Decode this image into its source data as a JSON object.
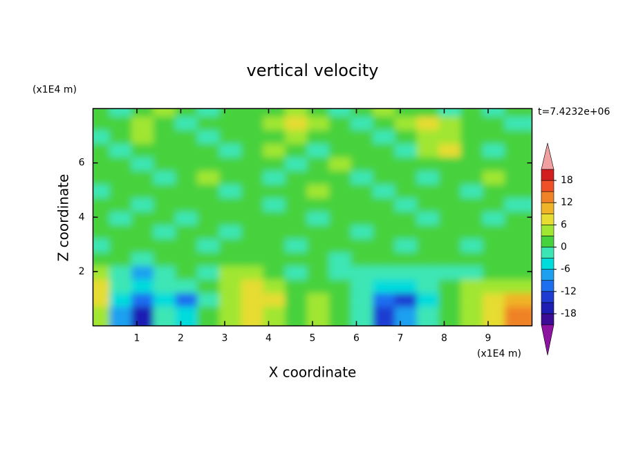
{
  "chart_data": {
    "type": "contour",
    "title": "vertical velocity",
    "xlabel": "X coordinate",
    "ylabel": "Z coordinate",
    "x_unit_label": "(x1E4 m)",
    "y_unit_label": "(x1E4 m)",
    "annotation": "t=7.4232e+06",
    "xlim": [
      0,
      10
    ],
    "ylim": [
      0,
      8
    ],
    "xticks": [
      1,
      2,
      3,
      4,
      5,
      6,
      7,
      8,
      9
    ],
    "yticks": [
      2,
      4,
      6
    ],
    "x": [
      0.25,
      0.75,
      1.25,
      1.75,
      2.25,
      2.75,
      3.25,
      3.75,
      4.25,
      4.75,
      5.25,
      5.75,
      6.25,
      6.75,
      7.25,
      7.75,
      8.25,
      8.75,
      9.25,
      9.75
    ],
    "y": [
      7.75,
      7.25,
      6.75,
      6.25,
      5.75,
      5.25,
      4.75,
      4.25,
      3.75,
      3.25,
      2.75,
      2.25,
      1.75,
      1.25,
      0.75,
      0.25
    ],
    "z": [
      [
        1.5,
        -1.5,
        1.5,
        4.5,
        1.5,
        -1.5,
        1.5,
        1.5,
        1.5,
        4.5,
        1.5,
        -1.5,
        1.5,
        4.5,
        1.5,
        1.5,
        -1.5,
        1.5,
        -1.5,
        1.5
      ],
      [
        1.5,
        1.5,
        4.5,
        1.5,
        -1.5,
        1.5,
        1.5,
        1.5,
        4.5,
        7.5,
        4.5,
        1.5,
        -1.5,
        1.5,
        4.5,
        7.5,
        4.5,
        1.5,
        1.5,
        -1.5
      ],
      [
        -1.5,
        1.5,
        4.5,
        1.5,
        1.5,
        -1.5,
        1.5,
        1.5,
        1.5,
        4.5,
        1.5,
        1.5,
        1.5,
        -1.5,
        1.5,
        4.5,
        4.5,
        1.5,
        1.5,
        1.5
      ],
      [
        1.5,
        -1.5,
        1.5,
        1.5,
        1.5,
        1.5,
        -1.5,
        1.5,
        4.5,
        1.5,
        -1.5,
        1.5,
        1.5,
        1.5,
        -1.5,
        4.5,
        7.5,
        1.5,
        -1.5,
        1.5
      ],
      [
        1.5,
        1.5,
        -1.5,
        1.5,
        1.5,
        1.5,
        1.5,
        1.5,
        1.5,
        -1.5,
        1.5,
        4.5,
        1.5,
        1.5,
        1.5,
        1.5,
        1.5,
        1.5,
        1.5,
        1.5
      ],
      [
        1.5,
        1.5,
        1.5,
        -1.5,
        1.5,
        4.5,
        1.5,
        1.5,
        -1.5,
        1.5,
        1.5,
        1.5,
        -1.5,
        1.5,
        1.5,
        -1.5,
        1.5,
        1.5,
        4.5,
        1.5
      ],
      [
        -1.5,
        1.5,
        1.5,
        1.5,
        1.5,
        1.5,
        -1.5,
        1.5,
        1.5,
        1.5,
        4.5,
        1.5,
        1.5,
        -1.5,
        1.5,
        1.5,
        1.5,
        -1.5,
        1.5,
        1.5
      ],
      [
        1.5,
        1.5,
        -1.5,
        1.5,
        1.5,
        1.5,
        1.5,
        1.5,
        -1.5,
        1.5,
        1.5,
        1.5,
        1.5,
        1.5,
        -1.5,
        1.5,
        1.5,
        1.5,
        1.5,
        -1.5
      ],
      [
        1.5,
        -1.5,
        1.5,
        1.5,
        -1.5,
        1.5,
        1.5,
        1.5,
        1.5,
        1.5,
        -1.5,
        1.5,
        1.5,
        1.5,
        1.5,
        -1.5,
        1.5,
        1.5,
        -1.5,
        1.5
      ],
      [
        1.5,
        1.5,
        1.5,
        -1.5,
        1.5,
        1.5,
        -1.5,
        1.5,
        1.5,
        1.5,
        1.5,
        1.5,
        -1.5,
        1.5,
        1.5,
        1.5,
        1.5,
        1.5,
        1.5,
        1.5
      ],
      [
        -1.5,
        1.5,
        1.5,
        1.5,
        1.5,
        -1.5,
        1.5,
        1.5,
        1.5,
        -1.5,
        1.5,
        1.5,
        1.5,
        1.5,
        -1.5,
        1.5,
        1.5,
        -1.5,
        1.5,
        1.5
      ],
      [
        1.5,
        1.5,
        -1.5,
        1.5,
        1.5,
        1.5,
        1.5,
        1.5,
        1.5,
        1.5,
        1.5,
        -1.5,
        1.5,
        1.5,
        1.5,
        1.5,
        1.5,
        1.5,
        1.5,
        1.5
      ],
      [
        4.5,
        -1.5,
        -7.5,
        -1.5,
        1.5,
        -1.5,
        4.5,
        4.5,
        1.5,
        -1.5,
        1.5,
        -1.5,
        -1.5,
        -1.5,
        -1.5,
        -1.5,
        -1.5,
        -1.5,
        1.5,
        1.5
      ],
      [
        7.5,
        -1.5,
        -4.5,
        -1.5,
        -1.5,
        1.5,
        4.5,
        7.5,
        4.5,
        1.5,
        1.5,
        1.5,
        -1.5,
        -4.5,
        -4.5,
        -1.5,
        1.5,
        4.5,
        4.5,
        4.5
      ],
      [
        7.5,
        -4.5,
        -10.5,
        -4.5,
        -10.5,
        -1.5,
        4.5,
        7.5,
        7.5,
        1.5,
        4.5,
        1.5,
        -1.5,
        -10.5,
        -13.5,
        -4.5,
        1.5,
        4.5,
        7.5,
        10.5
      ],
      [
        4.5,
        -7.5,
        -16.5,
        -1.5,
        -4.5,
        1.5,
        4.5,
        7.5,
        4.5,
        1.5,
        4.5,
        1.5,
        -1.5,
        -13.5,
        -7.5,
        -1.5,
        1.5,
        4.5,
        7.5,
        13.5
      ]
    ],
    "levels": [
      -21,
      -18,
      -15,
      -12,
      -9,
      -6,
      -3,
      0,
      3,
      6,
      9,
      12,
      15,
      18,
      21
    ],
    "colors": [
      "#3c0c96",
      "#1e1eb4",
      "#1e3cd2",
      "#1e6ef0",
      "#1ea0f0",
      "#00dcdc",
      "#3ce6b4",
      "#46d23c",
      "#a0e632",
      "#e6dc32",
      "#f0b428",
      "#f08228",
      "#f05028",
      "#d21e1e"
    ],
    "under_color": "#8c14a0",
    "over_color": "#f0a0a0",
    "colorbar_ticks": [
      18,
      12,
      6,
      0,
      -6,
      -12,
      -18
    ]
  }
}
